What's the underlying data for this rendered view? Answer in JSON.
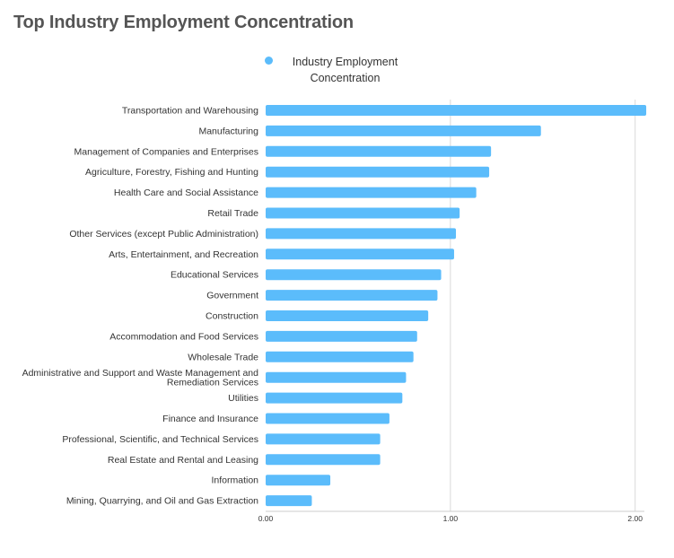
{
  "chart_data": {
    "type": "bar",
    "orientation": "horizontal",
    "title": "Top Industry Employment Concentration",
    "xlabel": "",
    "ylabel": "",
    "grid": true,
    "legend_position": "top-center",
    "xlim": [
      0,
      2.05
    ],
    "x_ticks": [
      0,
      1,
      2
    ],
    "x_tick_labels": [
      "0.00",
      "1.00",
      "2.00"
    ],
    "categories": [
      "Transportation and Warehousing",
      "Manufacturing",
      "Management of Companies and Enterprises",
      "Agriculture, Forestry, Fishing and Hunting",
      "Health Care and Social Assistance",
      "Retail Trade",
      "Other Services (except Public Administration)",
      "Arts, Entertainment, and Recreation",
      "Educational Services",
      "Government",
      "Construction",
      "Accommodation and Food Services",
      "Wholesale Trade",
      "Administrative and Support and Waste Management and Remediation Services",
      "Utilities",
      "Finance and Insurance",
      "Professional, Scientific, and Technical Services",
      "Real Estate and Rental and Leasing",
      "Information",
      "Mining, Quarrying, and Oil and Gas Extraction"
    ],
    "category_label_lines": [
      [
        "Transportation and Warehousing"
      ],
      [
        "Manufacturing"
      ],
      [
        "Management of Companies and Enterprises"
      ],
      [
        "Agriculture, Forestry, Fishing and Hunting"
      ],
      [
        "Health Care and Social Assistance"
      ],
      [
        "Retail Trade"
      ],
      [
        "Other Services (except Public Administration)"
      ],
      [
        "Arts, Entertainment, and Recreation"
      ],
      [
        "Educational Services"
      ],
      [
        "Government"
      ],
      [
        "Construction"
      ],
      [
        "Accommodation and Food Services"
      ],
      [
        "Wholesale Trade"
      ],
      [
        "Administrative and Support and Waste Management and",
        "Remediation Services"
      ],
      [
        "Utilities"
      ],
      [
        "Finance and Insurance"
      ],
      [
        "Professional, Scientific, and Technical Services"
      ],
      [
        "Real Estate and Rental and Leasing"
      ],
      [
        "Information"
      ],
      [
        "Mining, Quarrying, and Oil and Gas Extraction"
      ]
    ],
    "series": [
      {
        "name": "Industry Employment Concentration",
        "color": "#5bbcfb",
        "values": [
          2.06,
          1.49,
          1.22,
          1.21,
          1.14,
          1.05,
          1.03,
          1.02,
          0.95,
          0.93,
          0.88,
          0.82,
          0.8,
          0.76,
          0.74,
          0.67,
          0.62,
          0.62,
          0.35,
          0.25
        ]
      }
    ]
  },
  "colors": {
    "bar": "#5bbcfb",
    "grid": "#d9d9d9",
    "axis": "#cccccc"
  }
}
